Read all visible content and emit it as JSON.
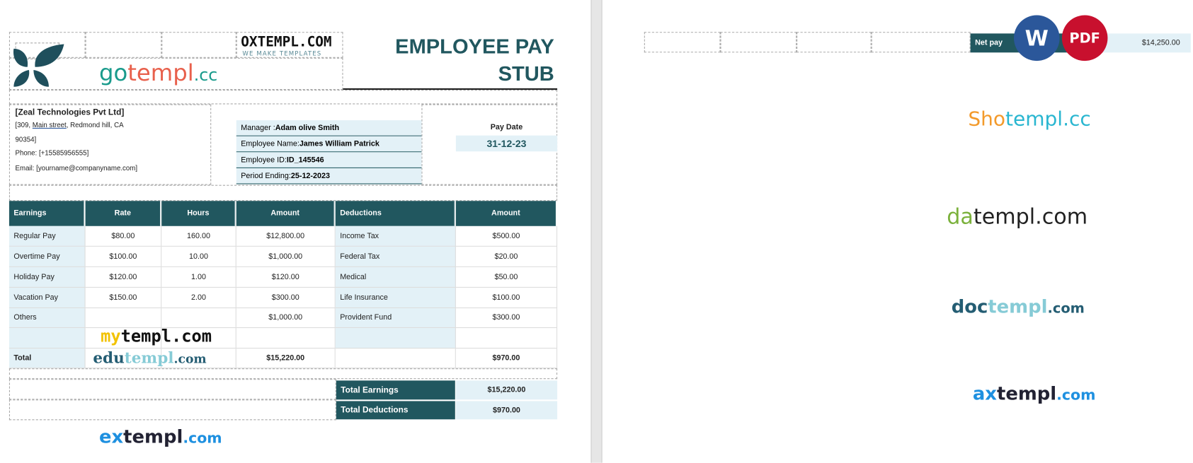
{
  "title": {
    "line1": "EMPLOYEE PAY",
    "line2": "STUB"
  },
  "company": {
    "name": "[Zeal Technologies Pvt Ltd]",
    "address1_pre": "[309, ",
    "address1_link": "Main street",
    "address1_post": ", Redmond hill, CA",
    "address2": "90354]",
    "phone": "Phone: [+15585956555]",
    "email": "Email: [yourname@companyname.com]"
  },
  "info": {
    "manager_label": "Manager : ",
    "manager": "Adam olive Smith",
    "employee_label": "Employee Name: ",
    "employee": "James William Patrick",
    "id_label": "Employee ID: ",
    "id": "ID_145546",
    "period_label": "Period Ending: ",
    "period": "25-12-2023"
  },
  "pay_date": {
    "label": "Pay Date",
    "value": "31-12-23"
  },
  "table": {
    "headers": [
      "Earnings",
      "Rate",
      "Hours",
      "Amount",
      "Deductions",
      "Amount"
    ],
    "rows": [
      [
        "Regular Pay",
        "$80.00",
        "160.00",
        "$12,800.00",
        "Income Tax",
        "$500.00"
      ],
      [
        "Overtime Pay",
        "$100.00",
        "10.00",
        "$1,000.00",
        "Federal Tax",
        "$20.00"
      ],
      [
        "Holiday Pay",
        "$120.00",
        "1.00",
        "$120.00",
        "Medical",
        "$50.00"
      ],
      [
        "Vacation Pay",
        "$150.00",
        "2.00",
        "$300.00",
        "Life Insurance",
        "$100.00"
      ],
      [
        "Others",
        "",
        "",
        "$1,000.00",
        "Provident Fund",
        "$300.00"
      ],
      [
        "",
        "",
        "",
        "",
        "",
        ""
      ]
    ],
    "total": {
      "label": "Total",
      "earnings": "$15,220.00",
      "deductions": "$970.00"
    }
  },
  "summary": {
    "total_earnings_label": "Total Earnings",
    "total_earnings": "$15,220.00",
    "total_deductions_label": "Total Deductions",
    "total_deductions": "$970.00"
  },
  "net_pay": {
    "label": "Net pay",
    "value": "$14,250.00"
  },
  "badges": {
    "word": "W",
    "pdf": "PDF"
  },
  "watermarks": {
    "gotempl": [
      "go",
      "templ",
      ".cc"
    ],
    "oxtempl": "OXTEMPL.COM",
    "oxtempl_sub": "WE MAKE TEMPLATES",
    "mytempl": [
      "my",
      "templ.com"
    ],
    "edutempl": [
      "edu",
      "templ",
      ".com"
    ],
    "extempl": [
      "ex",
      "templ",
      ".com"
    ],
    "shotempl": [
      "Sho",
      "templ",
      ".cc"
    ],
    "datempl": [
      "da",
      "templ.com"
    ],
    "doctempl": [
      "doc",
      "templ",
      ".com"
    ],
    "axtempl": [
      "ax",
      "templ",
      ".com"
    ]
  },
  "colors": {
    "teal": "#21575f",
    "light_blue": "#e3f1f7",
    "word_blue": "#2b579a",
    "pdf_red": "#c8102e"
  }
}
